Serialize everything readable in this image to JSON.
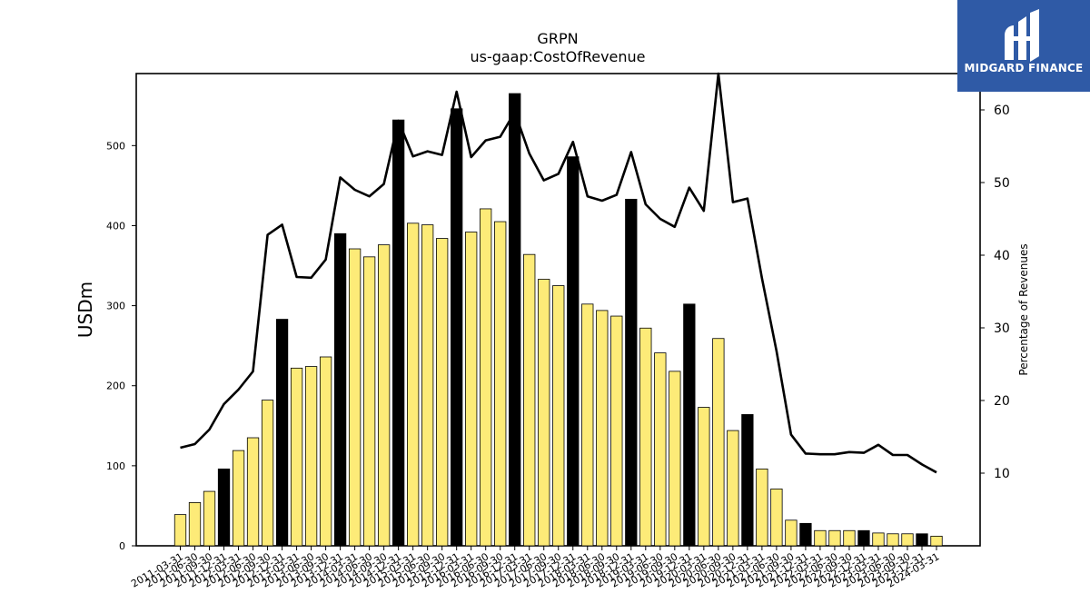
{
  "brand": {
    "name": "MIDGARD FINANCE",
    "color": "#2f5aa6"
  },
  "chart_data": {
    "type": "bar",
    "title": "GRPN",
    "subtitle": "us-gaap:CostOfRevenue",
    "ylabel": "USDm",
    "y2label": "Percentage of Revenues",
    "ylim": [
      0,
      590
    ],
    "y2lim": [
      0,
      65
    ],
    "yticks": [
      0,
      100,
      200,
      300,
      400,
      500
    ],
    "y2ticks": [
      10,
      20,
      30,
      40,
      50,
      60
    ],
    "colors": {
      "bar": "#fdeb78",
      "bar_q4": "#000000",
      "line": "#000000"
    },
    "categories": [
      "2011-03-31",
      "2011-06-30",
      "2011-09-30",
      "2011-12-31",
      "2012-03-31",
      "2012-06-30",
      "2012-09-30",
      "2012-12-31",
      "2013-03-31",
      "2013-06-30",
      "2013-09-30",
      "2013-12-31",
      "2014-03-31",
      "2014-06-30",
      "2014-09-30",
      "2014-12-31",
      "2015-03-31",
      "2015-06-30",
      "2015-09-30",
      "2015-12-31",
      "2016-03-31",
      "2016-06-30",
      "2016-09-30",
      "2016-12-31",
      "2017-03-31",
      "2017-06-30",
      "2017-09-30",
      "2017-12-31",
      "2018-03-31",
      "2018-06-30",
      "2018-09-30",
      "2018-12-31",
      "2019-03-31",
      "2019-06-30",
      "2019-09-30",
      "2019-12-31",
      "2020-03-31",
      "2020-06-30",
      "2020-09-30",
      "2020-12-31",
      "2021-03-31",
      "2021-06-30",
      "2021-09-30",
      "2021-12-31",
      "2022-03-31",
      "2022-06-30",
      "2022-09-30",
      "2022-12-31",
      "2023-03-31",
      "2023-06-30",
      "2023-09-30",
      "2023-12-31",
      "2024-03-31"
    ],
    "series": [
      {
        "name": "CostOfRevenue (USDm)",
        "values": [
          39,
          54,
          68,
          96,
          119,
          135,
          182,
          283,
          222,
          224,
          236,
          390,
          371,
          361,
          376,
          532,
          403,
          401,
          384,
          546,
          392,
          421,
          405,
          565,
          364,
          333,
          325,
          486,
          302,
          294,
          287,
          433,
          272,
          241,
          218,
          302,
          173,
          259,
          144,
          164,
          96,
          71,
          32,
          28,
          19,
          19,
          19,
          19,
          16,
          15,
          15,
          15,
          12
        ]
      },
      {
        "name": "Percentage of Revenues",
        "values": [
          13.5,
          14.0,
          16.0,
          19.5,
          21.5,
          24.0,
          42.8,
          44.2,
          37.0,
          36.9,
          39.4,
          50.7,
          49.0,
          48.1,
          49.8,
          58.5,
          53.6,
          54.3,
          53.8,
          62.5,
          53.5,
          55.8,
          56.3,
          59.7,
          54.0,
          50.3,
          51.2,
          55.6,
          48.1,
          47.5,
          48.3,
          54.2,
          47.0,
          45.0,
          43.9,
          49.3,
          46.1,
          65.0,
          47.3,
          47.8,
          36.8,
          26.8,
          15.3,
          12.7,
          12.6,
          12.6,
          12.9,
          12.8,
          13.9,
          12.5,
          12.5,
          11.2,
          10.1
        ]
      }
    ]
  }
}
